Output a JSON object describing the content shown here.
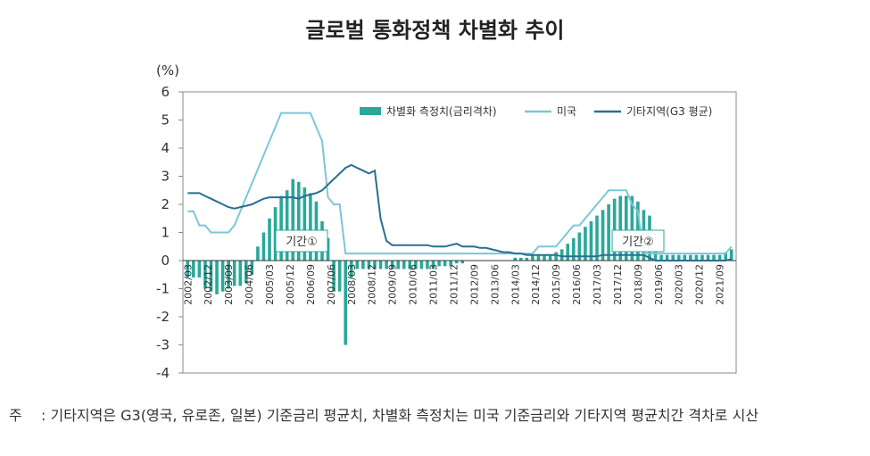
{
  "title": "글로벌 통화정책 차별화 추이",
  "note": {
    "label": "주",
    "text": ": 기타지역은 G3(영국, 유로존, 일본) 기준금리 평균치, 차별화 측정치는 미국 기준금리와 기타지역 평균치간 격차로 시산"
  },
  "colors": {
    "bar": "#2aa89a",
    "us": "#7cc7d6",
    "other": "#2a6f8f",
    "annotation_border": "#2aa89a"
  },
  "chart_data": {
    "type": "bar",
    "unit_label": "(%)",
    "ylim": [
      -4,
      6
    ],
    "yticks": [
      "-4",
      "-3",
      "-2",
      "-1",
      "0",
      "1",
      "2",
      "3",
      "4",
      "5",
      "6"
    ],
    "x_tick_labels": [
      "2002/03",
      "2002/12",
      "2003/09",
      "2004/06",
      "2005/03",
      "2005/12",
      "2006/09",
      "2007/06",
      "2008/03",
      "2008/12",
      "2009/09",
      "2010/06",
      "2011/03",
      "2011/12",
      "2012/09",
      "2013/06",
      "2014/03",
      "2014/12",
      "2015/09",
      "2016/06",
      "2017/03",
      "2017/12",
      "2018/09",
      "2019/06",
      "2020/03",
      "2020/12",
      "2021/09"
    ],
    "legend": [
      "차별화 측정치(금리격차)",
      "미국",
      "기타지역(G3 평균)"
    ],
    "annotations": [
      "기간①",
      "기간②"
    ],
    "series": [
      {
        "name": "차별화 측정치(금리격차)",
        "kind": "bar",
        "values": [
          -0.6,
          -0.6,
          -0.6,
          -1.0,
          -1.1,
          -1.2,
          -1.1,
          -1.0,
          -0.9,
          -0.9,
          -0.8,
          -0.5,
          0.5,
          1.0,
          1.5,
          1.9,
          2.3,
          2.5,
          2.9,
          2.8,
          2.6,
          2.4,
          2.1,
          1.4,
          0.8,
          -1.1,
          -1.1,
          -3.0,
          -0.6,
          -0.3,
          -0.3,
          -0.3,
          -0.3,
          -0.3,
          -0.3,
          -0.3,
          -0.3,
          -0.3,
          -0.3,
          -0.3,
          -0.3,
          -0.3,
          -0.3,
          -0.2,
          -0.2,
          -0.2,
          -0.1,
          -0.1,
          0.0,
          0.0,
          0.0,
          0.0,
          0.0,
          0.0,
          0.0,
          0.0,
          0.1,
          0.1,
          0.1,
          0.2,
          0.2,
          0.2,
          0.2,
          0.3,
          0.4,
          0.6,
          0.8,
          1.0,
          1.2,
          1.4,
          1.6,
          1.8,
          2.0,
          2.2,
          2.3,
          2.3,
          2.3,
          2.1,
          1.8,
          1.6,
          0.3,
          0.2,
          0.2,
          0.2,
          0.2,
          0.2,
          0.2,
          0.2,
          0.2,
          0.2,
          0.2,
          0.2,
          0.3,
          0.4
        ]
      },
      {
        "name": "미국",
        "kind": "line",
        "values": [
          1.75,
          1.75,
          1.25,
          1.25,
          1.0,
          1.0,
          1.0,
          1.0,
          1.25,
          1.75,
          2.25,
          2.75,
          3.25,
          3.75,
          4.25,
          4.75,
          5.25,
          5.25,
          5.25,
          5.25,
          5.25,
          5.25,
          4.75,
          4.25,
          2.25,
          2.0,
          2.0,
          0.25,
          0.25,
          0.25,
          0.25,
          0.25,
          0.25,
          0.25,
          0.25,
          0.25,
          0.25,
          0.25,
          0.25,
          0.25,
          0.25,
          0.25,
          0.25,
          0.25,
          0.25,
          0.25,
          0.25,
          0.25,
          0.25,
          0.25,
          0.25,
          0.25,
          0.25,
          0.25,
          0.25,
          0.25,
          0.25,
          0.25,
          0.25,
          0.25,
          0.5,
          0.5,
          0.5,
          0.5,
          0.75,
          1.0,
          1.25,
          1.25,
          1.5,
          1.75,
          2.0,
          2.25,
          2.5,
          2.5,
          2.5,
          2.5,
          2.0,
          1.75,
          0.25,
          0.25,
          0.25,
          0.25,
          0.25,
          0.25,
          0.25,
          0.25,
          0.25,
          0.25,
          0.25,
          0.25,
          0.25,
          0.25,
          0.25,
          0.5
        ]
      },
      {
        "name": "기타지역(G3 평균)",
        "kind": "line",
        "values": [
          2.4,
          2.4,
          2.4,
          2.3,
          2.2,
          2.1,
          2.0,
          1.9,
          1.85,
          1.9,
          1.95,
          2.0,
          2.1,
          2.2,
          2.25,
          2.25,
          2.25,
          2.25,
          2.25,
          2.2,
          2.3,
          2.35,
          2.4,
          2.5,
          2.7,
          2.9,
          3.1,
          3.3,
          3.4,
          3.3,
          3.2,
          3.1,
          3.2,
          1.5,
          0.7,
          0.55,
          0.55,
          0.55,
          0.55,
          0.55,
          0.55,
          0.55,
          0.5,
          0.5,
          0.5,
          0.55,
          0.6,
          0.5,
          0.5,
          0.5,
          0.45,
          0.45,
          0.4,
          0.35,
          0.3,
          0.3,
          0.25,
          0.25,
          0.2,
          0.2,
          0.2,
          0.2,
          0.2,
          0.2,
          0.15,
          0.15,
          0.15,
          0.15,
          0.15,
          0.15,
          0.15,
          0.2,
          0.2,
          0.2,
          0.2,
          0.2,
          0.2,
          0.2,
          0.2,
          0.1,
          0.0,
          0.0,
          0.0,
          0.0,
          0.0,
          0.0,
          0.0,
          0.0,
          0.0,
          0.0,
          0.0,
          0.0,
          0.0,
          0.05
        ]
      }
    ]
  }
}
